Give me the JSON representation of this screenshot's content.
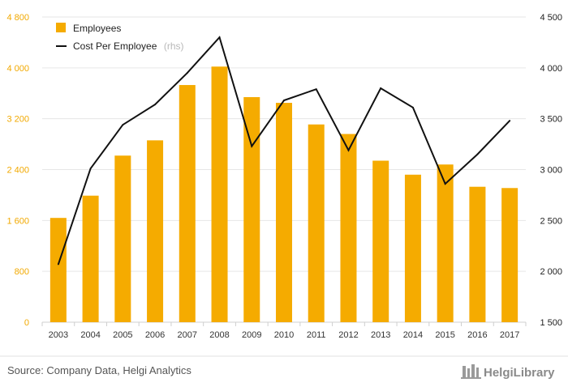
{
  "chart_data": {
    "type": "bar",
    "categories": [
      "2003",
      "2004",
      "2005",
      "2006",
      "2007",
      "2008",
      "2009",
      "2010",
      "2011",
      "2012",
      "2013",
      "2014",
      "2015",
      "2016",
      "2017"
    ],
    "series": [
      {
        "name": "Employees",
        "type": "bar",
        "axis": "left",
        "color": "#f5ab00",
        "values": [
          1640,
          1990,
          2620,
          2860,
          3730,
          4020,
          3540,
          3450,
          3110,
          2960,
          2540,
          2320,
          2480,
          2130,
          2110
        ]
      },
      {
        "name": "Cost Per Employee",
        "name_suffix": "(rhs)",
        "type": "line",
        "axis": "right",
        "color": "#111111",
        "values": [
          2070,
          3010,
          3440,
          3640,
          3950,
          4300,
          3230,
          3680,
          3790,
          3190,
          3800,
          3610,
          2860,
          3150,
          3480
        ]
      }
    ],
    "y_left": {
      "ticks": [
        "0",
        "800",
        "1 600",
        "2 400",
        "3 200",
        "4 000",
        "4 800"
      ],
      "ylim": [
        0,
        4800
      ]
    },
    "y_right": {
      "ticks": [
        "1 500",
        "2 000",
        "2 500",
        "3 000",
        "3 500",
        "4 000",
        "4 500"
      ],
      "ylim": [
        1500,
        4500
      ]
    },
    "grid": true,
    "legend_position": "top-left"
  },
  "source_text": "Source: Company Data, Helgi Analytics",
  "logo_text": "HelgiLibrary"
}
